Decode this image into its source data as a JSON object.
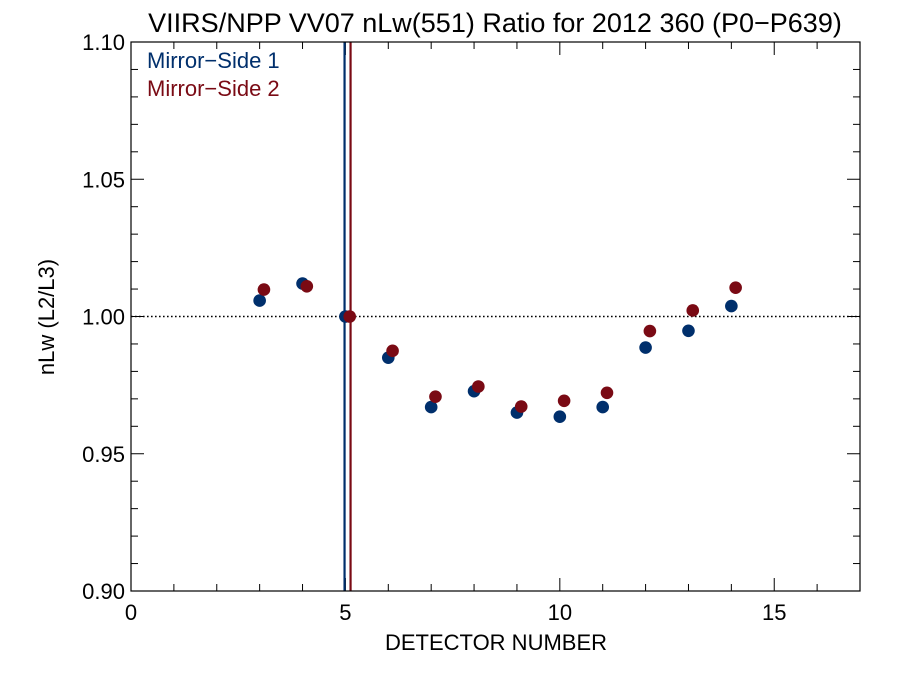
{
  "chart_data": {
    "type": "scatter",
    "title": "VIIRS/NPP VV07 nLw(551) Ratio for 2012 360 (P0−P639)",
    "xlabel": "DETECTOR NUMBER",
    "ylabel": "nLw (L2/L3)",
    "xlim": [
      0,
      17
    ],
    "ylim": [
      0.9,
      1.1
    ],
    "xticks": [
      0,
      5,
      10,
      15
    ],
    "xtick_labels": [
      "0",
      "5",
      "10",
      "15"
    ],
    "yticks": [
      0.9,
      0.95,
      1.0,
      1.05,
      1.1
    ],
    "ytick_labels": [
      "0.90",
      "0.95",
      "1.00",
      "1.05",
      "1.10"
    ],
    "grid": false,
    "legend_placement": "top-left",
    "reference_line": {
      "axis": "y",
      "value": 1.0,
      "style": "dotted"
    },
    "series": [
      {
        "name": "Mirror−Side 1",
        "color": "#002f6c",
        "x": [
          3,
          4,
          5,
          6,
          7,
          8,
          9,
          10,
          11,
          12,
          13,
          14
        ],
        "y": [
          1.0058,
          1.012,
          1.0,
          0.985,
          0.967,
          0.9728,
          0.965,
          0.9635,
          0.967,
          0.9887,
          0.9948,
          1.0038
        ],
        "vline": 4.98
      },
      {
        "name": "Mirror−Side 2",
        "color": "#7a0a14",
        "x": [
          3.1,
          4.1,
          5.1,
          6.1,
          7.1,
          8.1,
          9.1,
          10.1,
          11.1,
          12.1,
          13.1,
          14.1
        ],
        "y": [
          1.0098,
          1.011,
          1.0,
          0.9875,
          0.9708,
          0.9745,
          0.9672,
          0.9693,
          0.9722,
          0.9947,
          1.0022,
          1.0105
        ],
        "vline": 5.12
      }
    ]
  }
}
